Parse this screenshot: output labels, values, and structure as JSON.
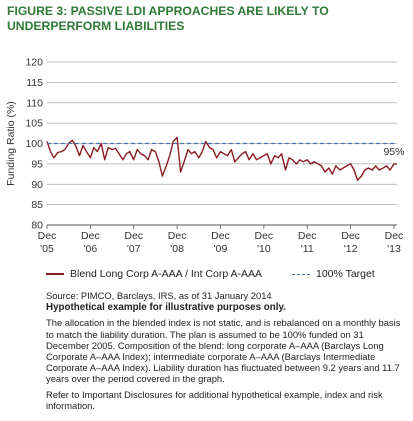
{
  "title_line1": "FIGURE 3: PASSIVE LDI APPROACHES ARE LIKELY TO",
  "title_line2": "UNDERPERFORM LIABILITIES",
  "chart_data": {
    "type": "line",
    "title": "FIGURE 3: PASSIVE LDI APPROACHES ARE LIKELY TO UNDERPERFORM LIABILITIES",
    "ylabel": "Funding Ratio (%)",
    "xlabel": "",
    "ylim": [
      80,
      120
    ],
    "yticks": [
      80,
      85,
      90,
      95,
      100,
      105,
      110,
      115,
      120
    ],
    "xlim": [
      2005.92,
      2013.99
    ],
    "xticks": [
      {
        "x": 2005.92,
        "month": "Dec",
        "year": "'05"
      },
      {
        "x": 2006.92,
        "month": "Dec",
        "year": "'06"
      },
      {
        "x": 2007.92,
        "month": "Dec",
        "year": "'07"
      },
      {
        "x": 2008.92,
        "month": "Dec",
        "year": "'08"
      },
      {
        "x": 2009.92,
        "month": "Dec",
        "year": "'09"
      },
      {
        "x": 2010.92,
        "month": "Dec",
        "year": "'10"
      },
      {
        "x": 2011.92,
        "month": "Dec",
        "year": "'11"
      },
      {
        "x": 2012.92,
        "month": "Dec",
        "year": "'12"
      },
      {
        "x": 2013.92,
        "month": "Dec",
        "year": "'13"
      }
    ],
    "grid": "horizontal",
    "legend_position": "bottom",
    "annotation": {
      "text": "95%",
      "x": 2013.92,
      "y": 95
    },
    "series": [
      {
        "name": "Blend Long Corp A-AAA / Int Corp A-AAA",
        "color": "#8b1a22",
        "style": "solid",
        "x": [
          2005.92,
          2006.0,
          2006.08,
          2006.17,
          2006.25,
          2006.33,
          2006.42,
          2006.5,
          2006.58,
          2006.67,
          2006.75,
          2006.83,
          2006.92,
          2007.0,
          2007.08,
          2007.17,
          2007.25,
          2007.33,
          2007.42,
          2007.5,
          2007.58,
          2007.67,
          2007.75,
          2007.83,
          2007.92,
          2008.0,
          2008.08,
          2008.17,
          2008.25,
          2008.33,
          2008.42,
          2008.5,
          2008.58,
          2008.67,
          2008.75,
          2008.83,
          2008.92,
          2009.0,
          2009.08,
          2009.17,
          2009.25,
          2009.33,
          2009.42,
          2009.5,
          2009.58,
          2009.67,
          2009.75,
          2009.83,
          2009.92,
          2010.0,
          2010.08,
          2010.17,
          2010.25,
          2010.33,
          2010.42,
          2010.5,
          2010.58,
          2010.67,
          2010.75,
          2010.83,
          2010.92,
          2011.0,
          2011.08,
          2011.17,
          2011.25,
          2011.33,
          2011.42,
          2011.5,
          2011.58,
          2011.67,
          2011.75,
          2011.83,
          2011.92,
          2012.0,
          2012.08,
          2012.17,
          2012.25,
          2012.33,
          2012.42,
          2012.5,
          2012.58,
          2012.67,
          2012.75,
          2012.83,
          2012.92,
          2013.0,
          2013.08,
          2013.17,
          2013.25,
          2013.33,
          2013.42,
          2013.5,
          2013.58,
          2013.67,
          2013.75,
          2013.83,
          2013.92,
          2013.99
        ],
        "y": [
          100.5,
          98.0,
          96.5,
          97.8,
          98.0,
          98.5,
          100.0,
          100.8,
          99.5,
          97.0,
          99.5,
          98.0,
          96.5,
          99.0,
          98.0,
          100.0,
          96.0,
          99.0,
          98.5,
          98.8,
          97.5,
          96.0,
          97.5,
          98.0,
          96.0,
          98.5,
          97.5,
          97.0,
          96.0,
          98.5,
          98.0,
          95.5,
          92.0,
          94.5,
          97.0,
          100.5,
          101.5,
          93.0,
          95.5,
          98.5,
          97.5,
          98.0,
          96.5,
          98.0,
          100.5,
          99.0,
          98.5,
          96.5,
          98.0,
          97.5,
          97.0,
          98.5,
          95.5,
          96.5,
          97.5,
          98.0,
          96.0,
          97.5,
          96.0,
          96.5,
          97.0,
          97.5,
          95.0,
          97.0,
          96.5,
          97.5,
          93.5,
          96.5,
          96.0,
          95.0,
          96.0,
          95.5,
          96.0,
          95.0,
          95.5,
          95.0,
          94.5,
          93.0,
          94.0,
          92.5,
          94.5,
          93.5,
          94.0,
          94.5,
          95.0,
          93.5,
          91.0,
          92.0,
          93.5,
          94.0,
          93.5,
          94.5,
          93.5,
          94.0,
          94.5,
          93.5,
          95.0,
          95.0
        ]
      },
      {
        "name": "100% Target",
        "color": "#4a72a8",
        "style": "dashed",
        "x": [
          2005.92,
          2013.99
        ],
        "y": [
          100,
          100
        ]
      }
    ]
  },
  "legend": {
    "blend_label": "Blend Long Corp A-AAA / Int Corp A-AAA",
    "target_label": "100% Target"
  },
  "notes": {
    "source": "Source: PIMCO, Barclays, IRS, as of 31 January 2014",
    "hypothetical": "Hypothetical example for illustrative purposes only.",
    "paragraph1": "The allocation in the blended index is not static, and is rebalanced on a monthly basis to match the liability duration. The plan is assumed to be 100% funded on 31 December 2005. Composition of the blend: long corporate A–AAA (Barclays Long Corporate A–AAA Index); intermediate corporate A–AAA (Barclays Intermediate Corporate A–AAA Index). Liability duration has fluctuated between 9.2 years and 11.7 years over the period covered in the graph.",
    "paragraph2": "Refer to Important Disclosures for additional hypothetical example, index and risk information."
  }
}
